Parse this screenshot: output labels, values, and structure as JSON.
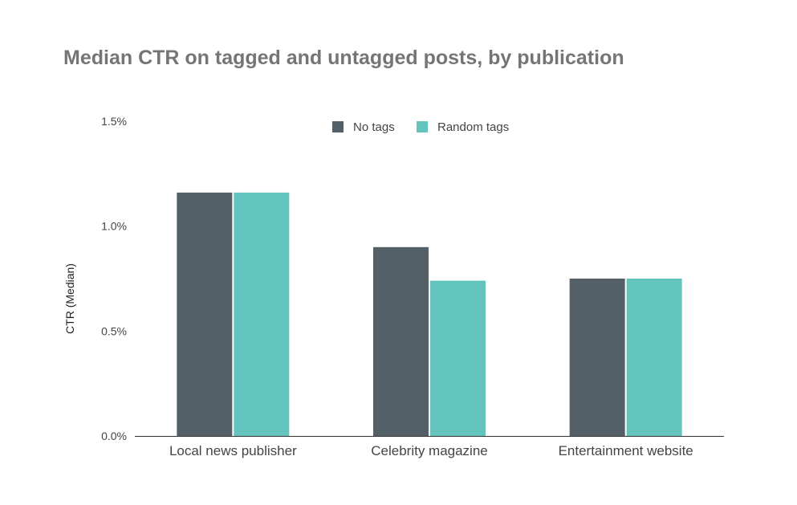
{
  "chart_data": {
    "type": "bar",
    "title": "Median CTR on tagged and untagged posts, by publication",
    "xlabel": "",
    "ylabel": "CTR (Median)",
    "ylim": [
      0,
      1.5
    ],
    "yticks": [
      {
        "value": 0,
        "label": "0.0%"
      },
      {
        "value": 0.5,
        "label": "0.5%"
      },
      {
        "value": 1.0,
        "label": "1.0%"
      },
      {
        "value": 1.5,
        "label": "1.5%"
      }
    ],
    "categories": [
      "Local news publisher",
      "Celebrity magazine",
      "Entertainment website"
    ],
    "series": [
      {
        "name": "No tags",
        "color": "#546067",
        "values": [
          1.16,
          0.9,
          0.75
        ]
      },
      {
        "name": "Random tags",
        "color": "#63c4be",
        "values": [
          1.16,
          0.74,
          0.75
        ]
      }
    ],
    "grid": false,
    "legend": "top-center"
  }
}
